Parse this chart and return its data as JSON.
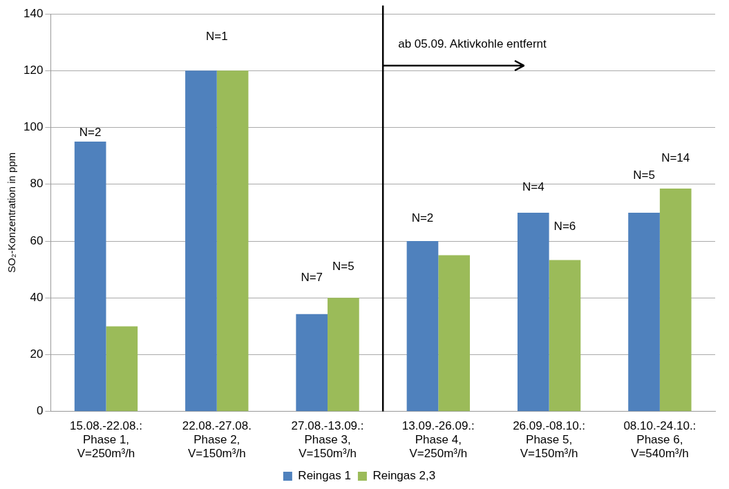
{
  "chart_data": {
    "type": "bar",
    "ylabel": "SO₂-Konzentration in ppm",
    "categories": [
      "15.08.-22.08.:\nPhase 1,\nV=250m³/h",
      "22.08.-27.08.\nPhase 2,\nV=150m³/h",
      "27.08.-13.09.:\nPhase 3,\nV=150m³/h",
      "13.09.-26.09.:\nPhase 4,\nV=250m³/h",
      "26.09.-08.10.:\nPhase 5,\nV=150m³/h",
      "08.10.-24.10.:\nPhase 6,\nV=540m³/h"
    ],
    "series": [
      {
        "name": "Reingas 1",
        "color": "#4f81bd",
        "values": [
          95,
          120,
          34.3,
          60,
          70,
          70
        ]
      },
      {
        "name": "Reingas 2,3",
        "color": "#9bbb59",
        "values": [
          30,
          120,
          40,
          55,
          53.3,
          78.5
        ]
      }
    ],
    "ylim": [
      0,
      140
    ],
    "yticks": [
      0,
      20,
      40,
      60,
      80,
      100,
      120,
      140
    ],
    "grid": "y",
    "legend": "bottom",
    "ref_lines": [
      {
        "axis": "x",
        "value": "13.09.-26.09.:\nPhase 4,\nV=250m³/h",
        "label": "ab 05.09. Aktivkohle entfernt",
        "color": "#000000"
      }
    ],
    "annotations": [
      "N=2",
      "N=1",
      "N=7",
      "N=5",
      "N=2",
      "N=4",
      "N=6",
      "N=5",
      "N=14"
    ]
  }
}
